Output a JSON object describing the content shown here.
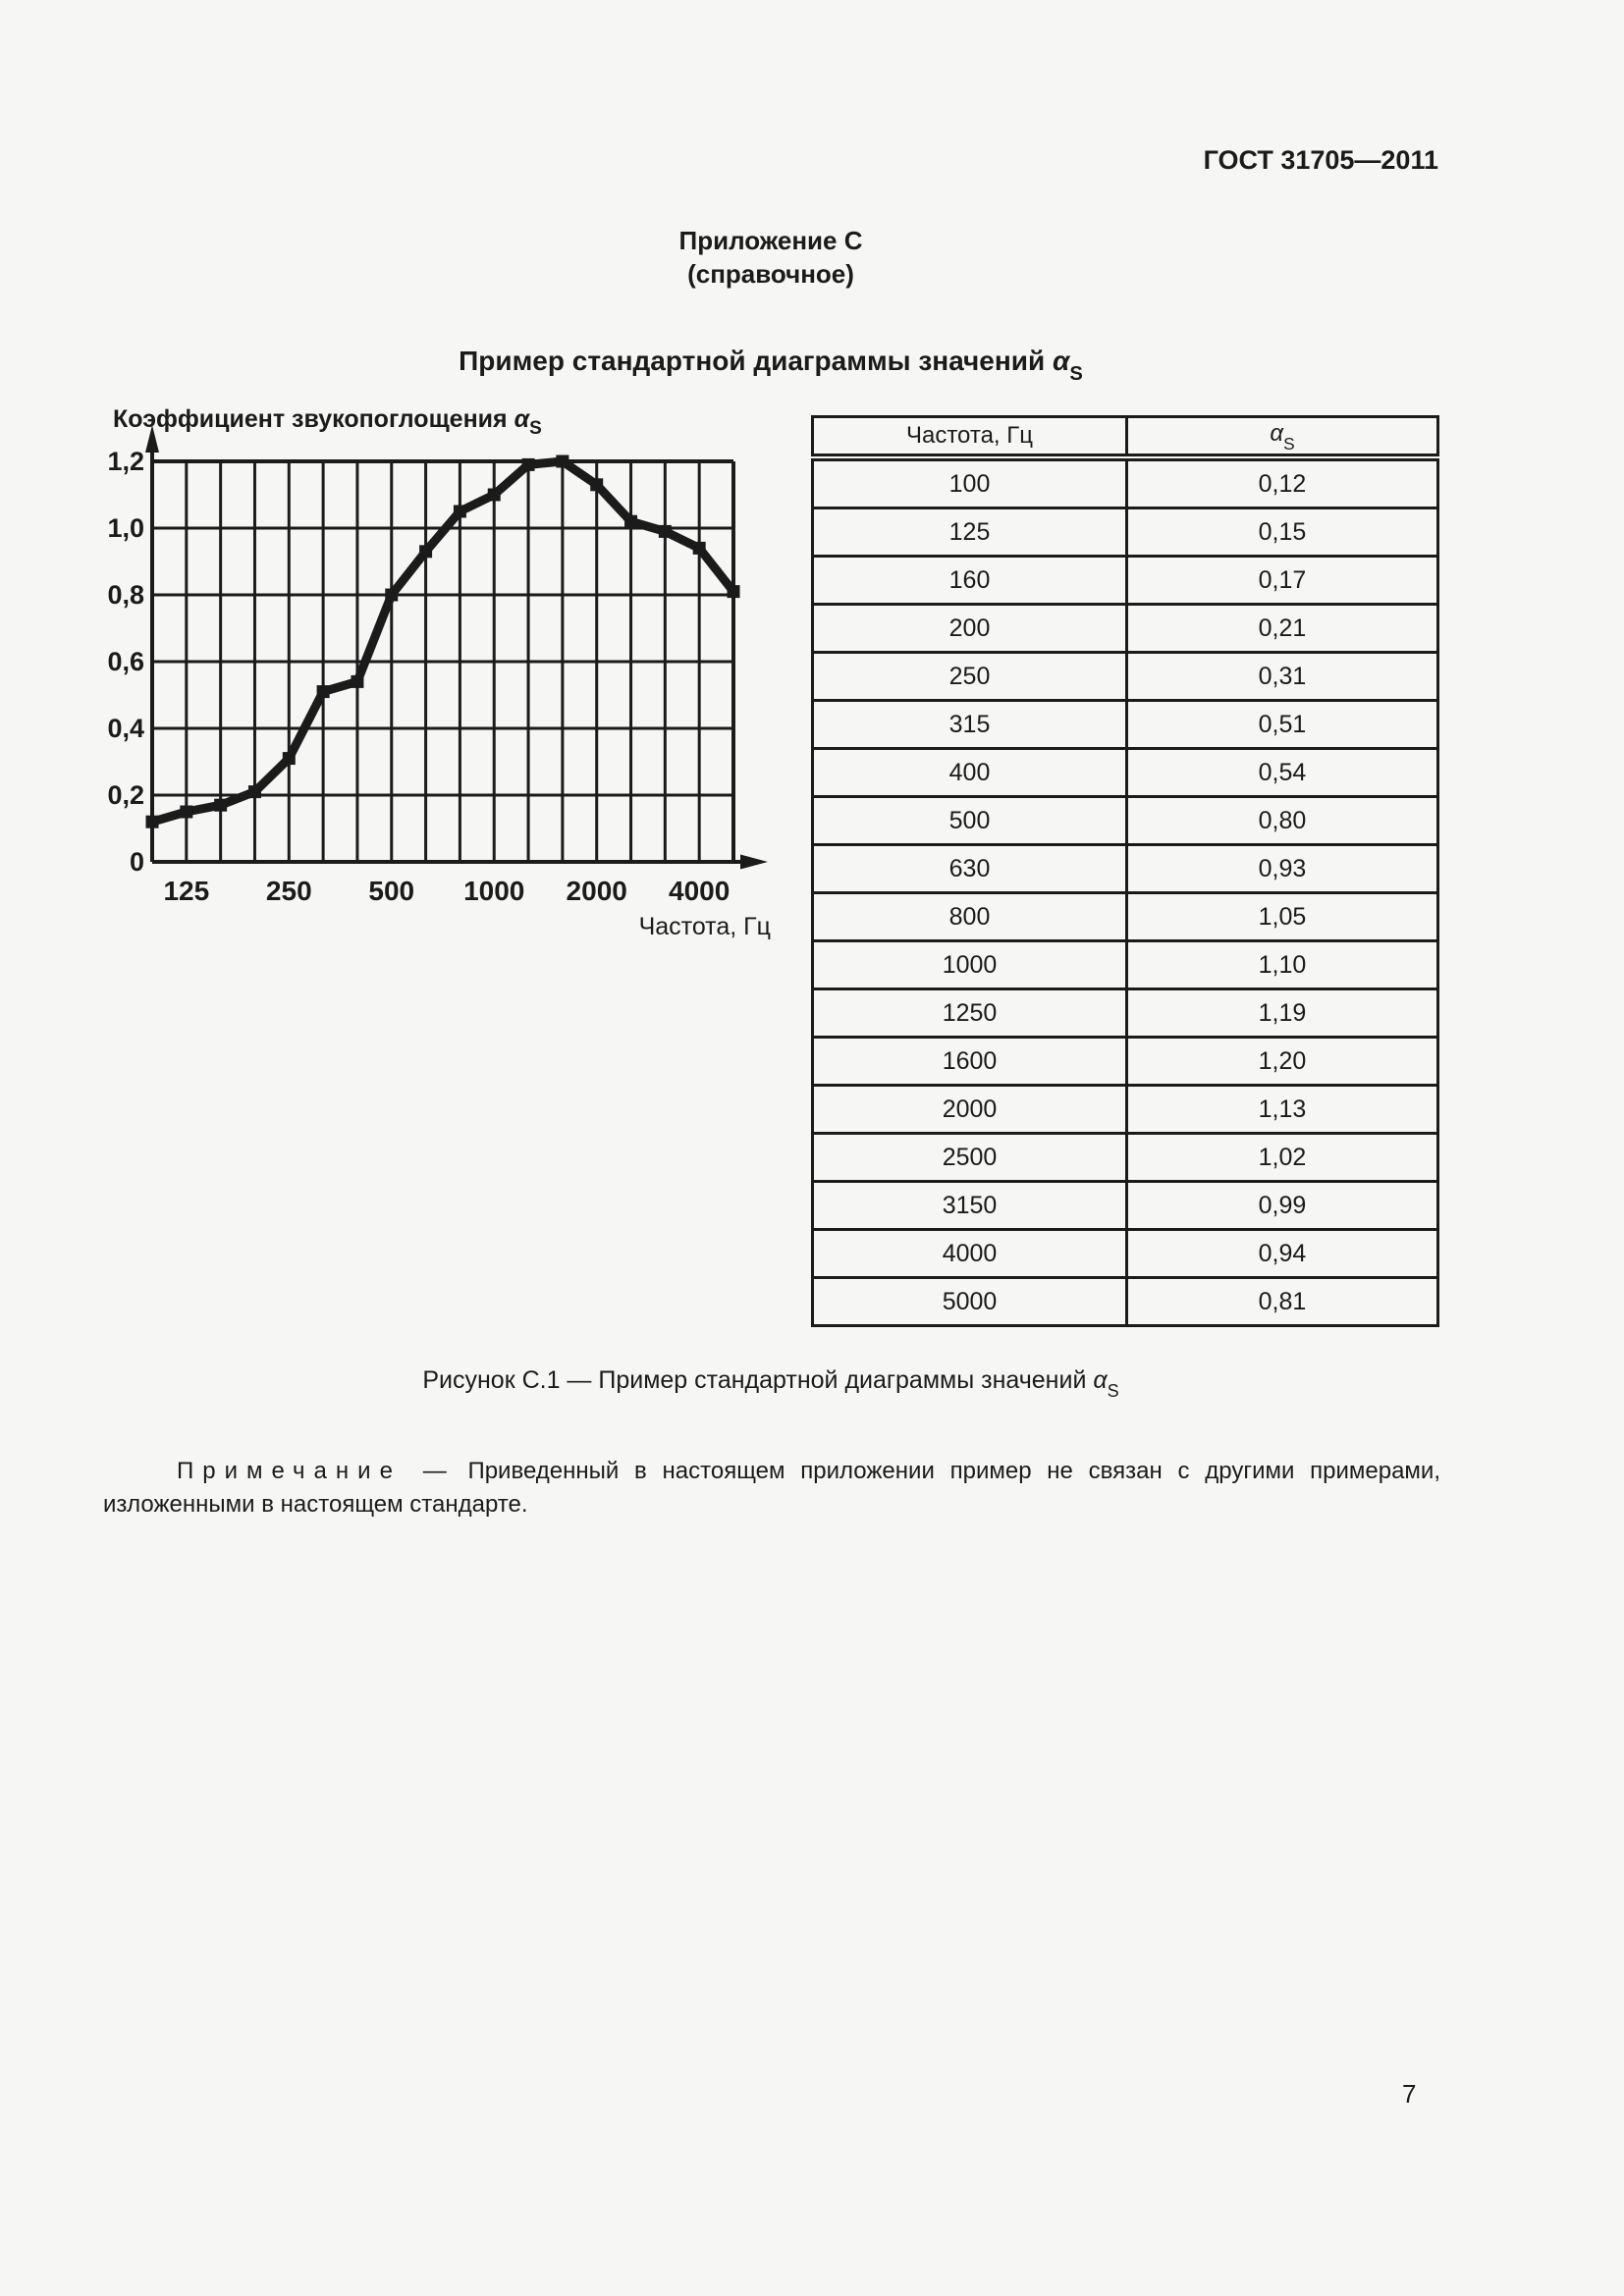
{
  "page": {
    "doc_number": "ГОСТ 31705—2011",
    "appendix_line1": "Приложение С",
    "appendix_line2": "(справочное)",
    "page_number": "7"
  },
  "colors": {
    "ink": "#1b1b1b",
    "background": "#f6f6f4"
  },
  "section_title": {
    "text": "Пример стандартной диаграммы значений ",
    "alpha": "α",
    "sub": "S"
  },
  "chart_data": {
    "type": "line",
    "title": {
      "text": "Коэффициент звукопоглощения ",
      "alpha": "α",
      "sub": "S"
    },
    "xlabel": "Частота, Гц",
    "ylabel": "Коэффициент звукопоглощения αS",
    "x_scale": "log (1/3-octave bands, equally spaced)",
    "x": [
      100,
      125,
      160,
      200,
      250,
      315,
      400,
      500,
      630,
      800,
      1000,
      1250,
      1600,
      2000,
      2500,
      3150,
      4000,
      5000
    ],
    "values": [
      0.12,
      0.15,
      0.17,
      0.21,
      0.31,
      0.51,
      0.54,
      0.8,
      0.93,
      1.05,
      1.1,
      1.19,
      1.2,
      1.13,
      1.02,
      0.99,
      0.94,
      0.81
    ],
    "ylim": [
      0,
      1.2
    ],
    "y_tick_values": [
      0,
      0.2,
      0.4,
      0.6,
      0.8,
      1.0,
      1.2
    ],
    "y_tick_labels": [
      "0",
      "0,2",
      "0,4",
      "0,6",
      "0,8",
      "1,0",
      "1,2"
    ],
    "x_tick_indices": [
      1,
      4,
      7,
      10,
      13,
      16
    ],
    "x_tick_labels": [
      "125",
      "250",
      "500",
      "1000",
      "2000",
      "4000"
    ],
    "grid": true,
    "marker": "square",
    "line_color": "#1b1b1b"
  },
  "table": {
    "col1_header": "Частота, Гц",
    "col2_header": {
      "alpha": "α",
      "sub": "S"
    },
    "rows": [
      [
        "100",
        "0,12"
      ],
      [
        "125",
        "0,15"
      ],
      [
        "160",
        "0,17"
      ],
      [
        "200",
        "0,21"
      ],
      [
        "250",
        "0,31"
      ],
      [
        "315",
        "0,51"
      ],
      [
        "400",
        "0,54"
      ],
      [
        "500",
        "0,80"
      ],
      [
        "630",
        "0,93"
      ],
      [
        "800",
        "1,05"
      ],
      [
        "1000",
        "1,10"
      ],
      [
        "1250",
        "1,19"
      ],
      [
        "1600",
        "1,20"
      ],
      [
        "2000",
        "1,13"
      ],
      [
        "2500",
        "1,02"
      ],
      [
        "3150",
        "0,99"
      ],
      [
        "4000",
        "0,94"
      ],
      [
        "5000",
        "0,81"
      ]
    ]
  },
  "figure_caption": {
    "text": "Рисунок С.1 — Пример стандартной диаграммы значений ",
    "alpha": "α",
    "sub": "S"
  },
  "note": {
    "label": "Примечание",
    "dash": "—",
    "text": "Приведенный в настоящем приложении пример не связан с другими примерами, изложенными в настоящем стандарте."
  }
}
